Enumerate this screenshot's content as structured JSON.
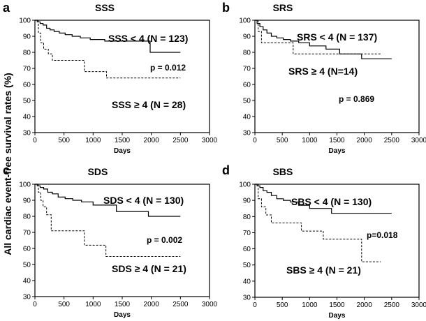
{
  "ylabel": "All cardiac event-free survival rates (%)",
  "chart_data": [
    {
      "type": "line",
      "panel_label": "a",
      "title": "SSS",
      "xlabel": "Days",
      "ylabel": "",
      "xlim": [
        0,
        3000
      ],
      "ylim": [
        30,
        100
      ],
      "x_ticks": [
        "0",
        "500",
        "1000",
        "1500",
        "2000",
        "2500",
        "3000"
      ],
      "y_ticks": [
        "30",
        "40",
        "50",
        "60",
        "70",
        "80",
        "90",
        "100"
      ],
      "grid": false,
      "series": [
        {
          "name": "SSS < 4 (N = 123)",
          "style": "solid",
          "x": [
            0,
            40,
            90,
            140,
            200,
            260,
            330,
            420,
            520,
            640,
            780,
            950,
            1200,
            1980,
            2500
          ],
          "y": [
            100,
            99,
            98,
            97,
            95,
            94,
            93,
            92,
            91,
            90,
            89,
            88,
            87,
            80,
            80
          ]
        },
        {
          "name": "SSS ≥ 4 (N = 28)",
          "style": "dashed",
          "x": [
            0,
            60,
            100,
            150,
            230,
            300,
            850,
            1230,
            2500
          ],
          "y": [
            100,
            92,
            86,
            82,
            79,
            75,
            68,
            64,
            64
          ]
        }
      ],
      "annotations": [
        "p = 0.012"
      ]
    },
    {
      "type": "line",
      "panel_label": "b",
      "title": "SRS",
      "xlabel": "Days",
      "ylabel": "",
      "xlim": [
        0,
        3000
      ],
      "ylim": [
        30,
        100
      ],
      "x_ticks": [
        "0",
        "500",
        "1000",
        "1500",
        "2000",
        "2500",
        "3000"
      ],
      "y_ticks": [
        "30",
        "40",
        "50",
        "60",
        "70",
        "80",
        "90",
        "100"
      ],
      "grid": false,
      "series": [
        {
          "name": "SRS < 4 (N = 137)",
          "style": "solid",
          "x": [
            0,
            40,
            90,
            150,
            220,
            300,
            400,
            520,
            650,
            800,
            1000,
            1300,
            1550,
            1950,
            2500
          ],
          "y": [
            100,
            98,
            96,
            94,
            92,
            90,
            89,
            88,
            87,
            86,
            84,
            82,
            79,
            76,
            76
          ]
        },
        {
          "name": "SRS ≥ 4 (N=14)",
          "style": "dashed",
          "x": [
            0,
            60,
            120,
            700,
            2300
          ],
          "y": [
            100,
            93,
            86,
            79,
            79
          ]
        }
      ],
      "annotations": [
        "p = 0.869"
      ]
    },
    {
      "type": "line",
      "panel_label": "c",
      "title": "SDS",
      "xlabel": "Days",
      "ylabel": "",
      "xlim": [
        0,
        3000
      ],
      "ylim": [
        30,
        100
      ],
      "x_ticks": [
        "0",
        "500",
        "1000",
        "1500",
        "2000",
        "2500",
        "3000"
      ],
      "y_ticks": [
        "30",
        "40",
        "50",
        "60",
        "70",
        "80",
        "90",
        "100"
      ],
      "grid": false,
      "series": [
        {
          "name": "SDS < 4 (N = 130)",
          "style": "solid",
          "x": [
            0,
            40,
            90,
            150,
            220,
            300,
            400,
            520,
            650,
            800,
            1000,
            1400,
            1950,
            2500
          ],
          "y": [
            100,
            99,
            98,
            97,
            95,
            94,
            92,
            91,
            90,
            89,
            87,
            83,
            80,
            80
          ]
        },
        {
          "name": "SDS ≥ 4 (N = 21)",
          "style": "dashed",
          "x": [
            0,
            60,
            100,
            140,
            200,
            280,
            850,
            1220,
            2500
          ],
          "y": [
            100,
            95,
            90,
            86,
            81,
            71,
            62,
            55,
            55
          ]
        }
      ],
      "annotations": [
        "p = 0.002"
      ]
    },
    {
      "type": "line",
      "panel_label": "d",
      "title": "SBS",
      "xlabel": "Days",
      "ylabel": "",
      "xlim": [
        0,
        3000
      ],
      "ylim": [
        30,
        100
      ],
      "x_ticks": [
        "0",
        "500",
        "1000",
        "1500",
        "2000",
        "2500",
        "3000"
      ],
      "y_ticks": [
        "30",
        "40",
        "50",
        "60",
        "70",
        "80",
        "90",
        "100"
      ],
      "grid": false,
      "series": [
        {
          "name": "SBS < 4 (N = 130)",
          "style": "solid",
          "x": [
            0,
            40,
            90,
            150,
            220,
            300,
            400,
            520,
            650,
            800,
            1000,
            1400,
            2500
          ],
          "y": [
            100,
            99,
            98,
            96,
            95,
            93,
            91,
            90,
            89,
            87,
            85,
            82,
            82
          ]
        },
        {
          "name": "SBS ≥ 4 (N = 21)",
          "style": "dashed",
          "x": [
            0,
            60,
            120,
            200,
            300,
            850,
            1250,
            1950,
            2300
          ],
          "y": [
            100,
            91,
            86,
            81,
            76,
            71,
            66,
            52,
            52
          ]
        }
      ],
      "annotations": [
        "p=0.018"
      ]
    }
  ]
}
